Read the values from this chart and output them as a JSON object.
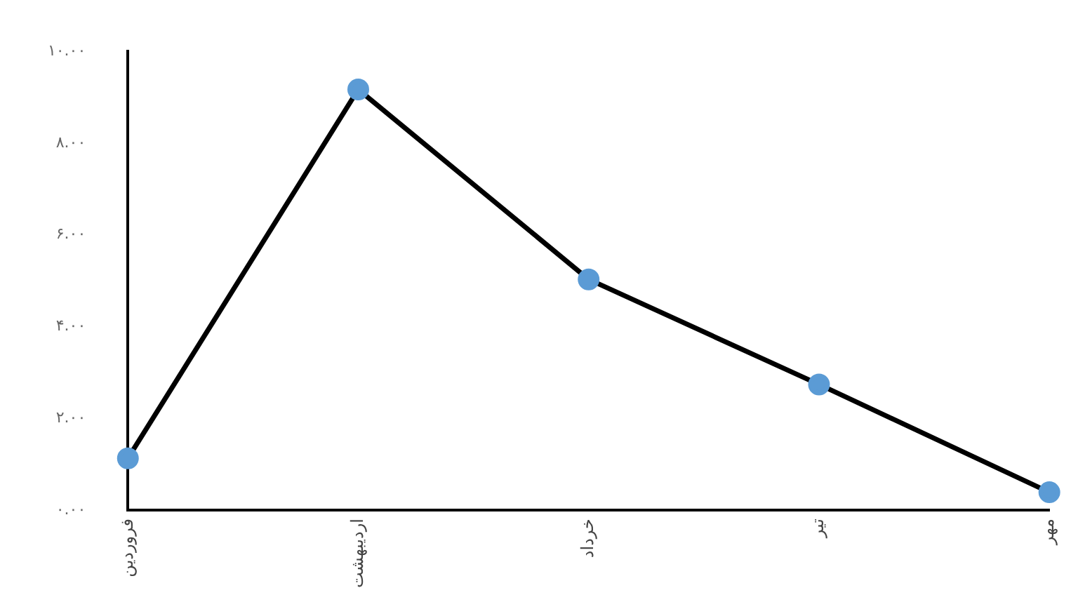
{
  "chart_data": {
    "type": "line",
    "categories": [
      "فروردین",
      "اردیبهشت",
      "خرداد",
      "تیر",
      "مهر"
    ],
    "series": [
      {
        "color": "#000000",
        "values": [
          1.13,
          9.17,
          5.03,
          2.74,
          0.39
        ]
      }
    ],
    "marker": "circle",
    "line_style": "solid",
    "grid": false,
    "legend": false,
    "ylim": [
      0,
      10
    ],
    "yticks": [
      {
        "value": 0,
        "label": "۰.۰۰"
      },
      {
        "value": 2,
        "label": "۲.۰۰"
      },
      {
        "value": 4,
        "label": "۴.۰۰"
      },
      {
        "value": 6,
        "label": "۶.۰۰"
      },
      {
        "value": 8,
        "label": "۸.۰۰"
      },
      {
        "value": 10,
        "label": "۱۰.۰۰"
      }
    ]
  }
}
